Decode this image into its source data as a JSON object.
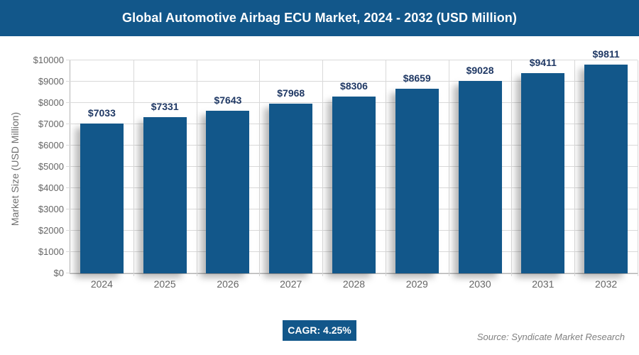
{
  "chart_data": {
    "type": "bar",
    "title": "Global Automotive Airbag ECU Market, 2024 - 2032 (USD Million)",
    "categories": [
      "2024",
      "2025",
      "2026",
      "2027",
      "2028",
      "2029",
      "2030",
      "2031",
      "2032"
    ],
    "values": [
      7033,
      7331,
      7643,
      7968,
      8306,
      8659,
      9028,
      9411,
      9811
    ],
    "value_labels": [
      "$7033",
      "$7331",
      "$7643",
      "$7968",
      "$8306",
      "$8659",
      "$9028",
      "$9411",
      "$9811"
    ],
    "xlabel": "",
    "ylabel": "Market Size (USD Million)",
    "ylim": [
      0,
      10000
    ],
    "ytick_step": 1000,
    "ytick_labels": [
      "$0",
      "$1000",
      "$2000",
      "$3000",
      "$4000",
      "$5000",
      "$6000",
      "$7000",
      "$8000",
      "$9000",
      "$10000"
    ],
    "grid": true,
    "legend_position": "none"
  },
  "footer": {
    "cagr_label": "CAGR: 4.25%",
    "source": "Source: Syndicate Market Research"
  },
  "colors": {
    "header_bg": "#12578a",
    "bar": "#12578a",
    "value_label": "#1f3864",
    "axis_text": "#666666",
    "gridline": "#d9d9d9",
    "badge_bg": "#12578a",
    "source_text": "#808080"
  }
}
